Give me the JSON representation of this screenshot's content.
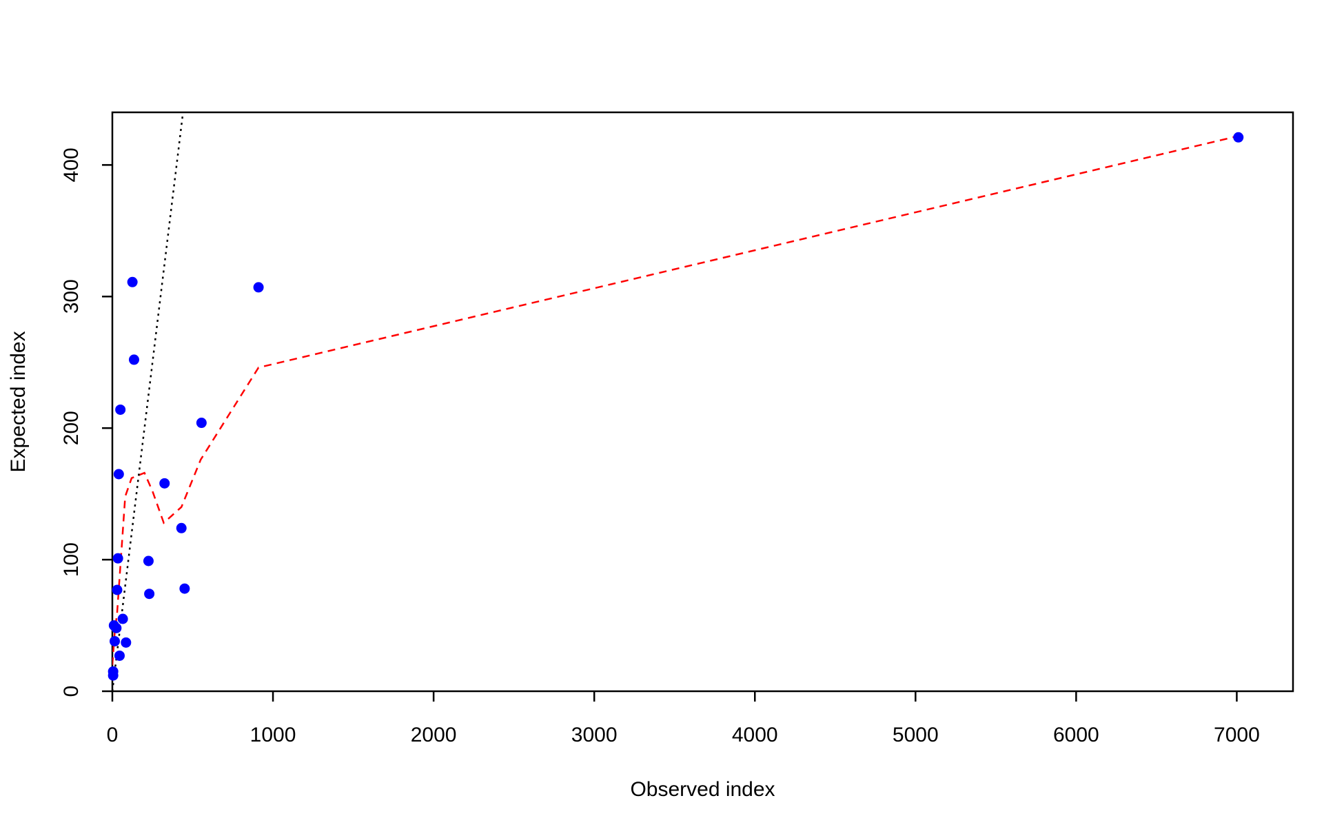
{
  "chart_data": {
    "type": "scatter",
    "title": "",
    "xlabel": "Observed index",
    "ylabel": "Expected index",
    "xlim": [
      0,
      7350
    ],
    "ylim": [
      0,
      440
    ],
    "x_ticks": [
      0,
      1000,
      2000,
      3000,
      4000,
      5000,
      6000,
      7000
    ],
    "y_ticks": [
      0,
      100,
      200,
      300,
      400
    ],
    "grid": false,
    "legend": "none",
    "colors": {
      "points": "#0000ff",
      "smooth": "#ff0000",
      "reference": "#000000",
      "frame": "#000000"
    },
    "points": [
      {
        "x": 5,
        "y": 12
      },
      {
        "x": 5,
        "y": 15
      },
      {
        "x": 10,
        "y": 50
      },
      {
        "x": 15,
        "y": 38
      },
      {
        "x": 25,
        "y": 48
      },
      {
        "x": 30,
        "y": 77
      },
      {
        "x": 35,
        "y": 101
      },
      {
        "x": 40,
        "y": 165
      },
      {
        "x": 45,
        "y": 27
      },
      {
        "x": 50,
        "y": 214
      },
      {
        "x": 65,
        "y": 55
      },
      {
        "x": 85,
        "y": 37
      },
      {
        "x": 125,
        "y": 311
      },
      {
        "x": 135,
        "y": 252
      },
      {
        "x": 225,
        "y": 99
      },
      {
        "x": 230,
        "y": 74
      },
      {
        "x": 325,
        "y": 158
      },
      {
        "x": 430,
        "y": 124
      },
      {
        "x": 450,
        "y": 78
      },
      {
        "x": 555,
        "y": 204
      },
      {
        "x": 910,
        "y": 307
      },
      {
        "x": 7010,
        "y": 421
      }
    ],
    "smooth_line": {
      "style": "dashed",
      "points": [
        {
          "x": 0,
          "y": 20
        },
        {
          "x": 15,
          "y": 45
        },
        {
          "x": 30,
          "y": 60
        },
        {
          "x": 50,
          "y": 95
        },
        {
          "x": 80,
          "y": 148
        },
        {
          "x": 120,
          "y": 162
        },
        {
          "x": 200,
          "y": 166
        },
        {
          "x": 250,
          "y": 152
        },
        {
          "x": 320,
          "y": 128
        },
        {
          "x": 430,
          "y": 140
        },
        {
          "x": 550,
          "y": 176
        },
        {
          "x": 910,
          "y": 246
        },
        {
          "x": 7010,
          "y": 422
        }
      ]
    },
    "reference_line": {
      "style": "dotted",
      "slope": 1,
      "intercept": 0,
      "x_range": [
        0,
        440
      ]
    }
  }
}
